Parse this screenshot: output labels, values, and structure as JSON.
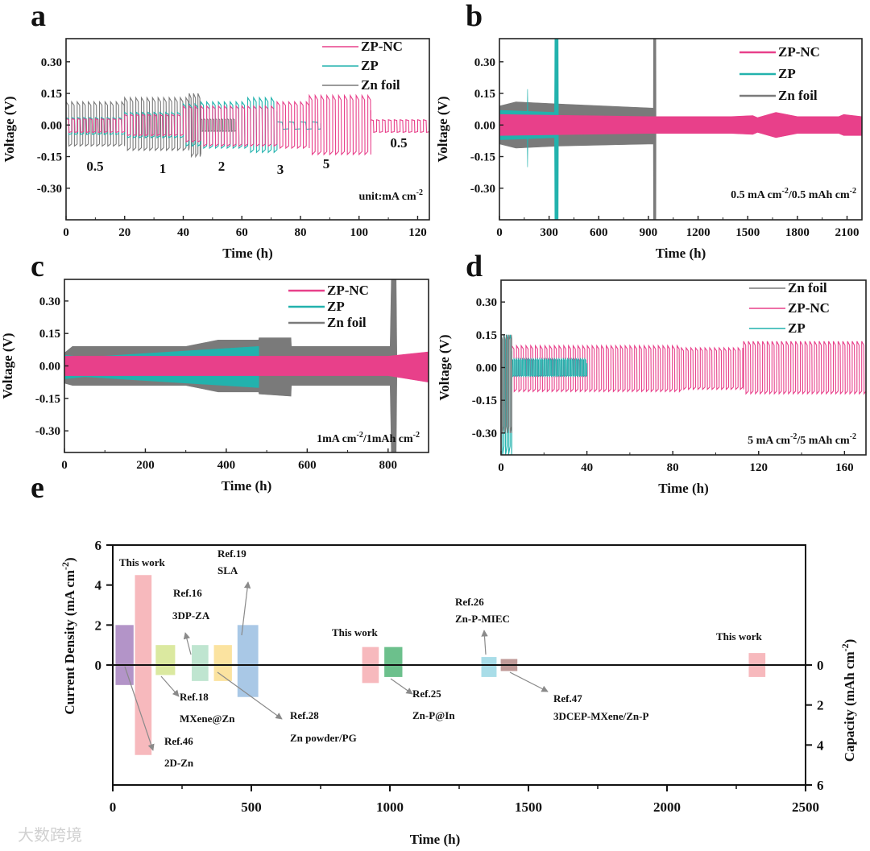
{
  "colors": {
    "zpnc": "#e8408a",
    "zp": "#22b2ad",
    "znfoil": "#7a7a7a"
  },
  "watermark": "大数跨境",
  "chart_data": [
    {
      "panel": "a",
      "type": "line",
      "style": "wave",
      "xlabel": "Time (h)",
      "ylabel": "Voltage (V)",
      "xlim": [
        0,
        124
      ],
      "ylim": [
        -0.45,
        0.41
      ],
      "xticks": [
        0,
        20,
        40,
        60,
        80,
        100,
        120
      ],
      "yticks": [
        -0.3,
        -0.15,
        0.0,
        0.15,
        0.3
      ],
      "ytick_labels": [
        "-0.30",
        "-0.15",
        "0.00",
        "0.15",
        "0.30"
      ],
      "legend": [
        "ZP-NC",
        "ZP",
        "Zn foil"
      ],
      "annotations": [
        "0.5",
        "1",
        "2",
        "3",
        "5",
        "0.5"
      ],
      "condition": [
        {
          "t": "unit:mA cm"
        },
        {
          "t": "-2",
          "sup": true
        }
      ],
      "series": [
        {
          "name": "Zn foil",
          "color": "znfoil",
          "segments": [
            {
              "t": [
                0,
                20
              ],
              "hi": 0.11,
              "lo": -0.1,
              "period": 1.9
            },
            {
              "t": [
                20,
                42
              ],
              "hi": 0.13,
              "lo": -0.12,
              "period": 1.9
            },
            {
              "t": [
                42,
                46
              ],
              "hi": 0.15,
              "lo": -0.15,
              "period": 1.5
            },
            {
              "t": [
                46,
                58
              ],
              "hi": 0.03,
              "lo": -0.03,
              "period": 1.0
            }
          ]
        },
        {
          "name": "ZP",
          "color": "zp",
          "segments": [
            {
              "t": [
                0,
                20
              ],
              "hi": 0.035,
              "lo": -0.045,
              "period": 2
            },
            {
              "t": [
                20,
                40
              ],
              "hi": 0.06,
              "lo": -0.06,
              "period": 2
            },
            {
              "t": [
                40,
                46
              ],
              "hi": 0.1,
              "lo": -0.1,
              "period": 2
            },
            {
              "t": [
                46,
                62
              ],
              "hi": 0.11,
              "lo": -0.11,
              "period": 2
            },
            {
              "t": [
                62,
                72
              ],
              "hi": 0.13,
              "lo": -0.13,
              "period": 2
            },
            {
              "t": [
                72,
                87
              ],
              "hi": 0.015,
              "lo": -0.02,
              "period": 4
            }
          ]
        },
        {
          "name": "ZP-NC",
          "color": "zpnc",
          "segments": [
            {
              "t": [
                0,
                20
              ],
              "hi": 0.03,
              "lo": -0.035,
              "period": 2
            },
            {
              "t": [
                20,
                40
              ],
              "hi": 0.05,
              "lo": -0.05,
              "period": 2
            },
            {
              "t": [
                40,
                46
              ],
              "hi": 0.09,
              "lo": -0.08,
              "period": 2
            },
            {
              "t": [
                46,
                72
              ],
              "hi": 0.09,
              "lo": -0.1,
              "period": 2
            },
            {
              "t": [
                72,
                83
              ],
              "hi": 0.11,
              "lo": -0.11,
              "period": 2
            },
            {
              "t": [
                83,
                104
              ],
              "hi": 0.14,
              "lo": -0.14,
              "period": 2
            },
            {
              "t": [
                104,
                124
              ],
              "hi": 0.025,
              "lo": -0.035,
              "period": 2
            }
          ]
        }
      ]
    },
    {
      "panel": "b",
      "type": "area",
      "style": "band",
      "xlabel": "Time (h)",
      "ylabel": "Voltage (V)",
      "xlim": [
        0,
        2190
      ],
      "ylim": [
        -0.45,
        0.41
      ],
      "xticks": [
        0,
        300,
        600,
        900,
        1200,
        1500,
        1800,
        2100
      ],
      "yticks": [
        -0.3,
        -0.15,
        0.0,
        0.15,
        0.3
      ],
      "ytick_labels": [
        "-0.30",
        "-0.15",
        "0.00",
        "0.15",
        "0.30"
      ],
      "legend": [
        "ZP-NC",
        "ZP",
        "Zn foil"
      ],
      "condition": [
        {
          "t": "0.5 mA cm"
        },
        {
          "t": "-2",
          "sup": true
        },
        {
          "t": "/0.5 mAh cm"
        },
        {
          "t": "-2",
          "sup": true
        }
      ],
      "series": [
        {
          "name": "Zn foil",
          "color": "znfoil",
          "envelope": [
            [
              0,
              0.09,
              -0.09
            ],
            [
              100,
              0.11,
              -0.11
            ],
            [
              350,
              0.1,
              -0.1
            ],
            [
              930,
              0.08,
              -0.09
            ],
            [
              931,
              0.41,
              -0.45
            ],
            [
              945,
              0.41,
              -0.45
            ],
            [
              946,
              0,
              0
            ]
          ]
        },
        {
          "name": "ZP",
          "color": "zp",
          "envelope": [
            [
              0,
              0.07,
              -0.07
            ],
            [
              168,
              0.065,
              -0.065
            ],
            [
              170,
              0.17,
              -0.2
            ],
            [
              172,
              0.065,
              -0.065
            ],
            [
              333,
              0.06,
              -0.06
            ],
            [
              335,
              0.41,
              -0.45
            ],
            [
              355,
              0.41,
              -0.45
            ],
            [
              356,
              0,
              0
            ]
          ]
        },
        {
          "name": "ZP-NC",
          "color": "zpnc",
          "envelope": [
            [
              0,
              0.05,
              -0.05
            ],
            [
              900,
              0.04,
              -0.04
            ],
            [
              1400,
              0.04,
              -0.04
            ],
            [
              1530,
              0.045,
              -0.045
            ],
            [
              1560,
              0.035,
              -0.035
            ],
            [
              1670,
              0.06,
              -0.06
            ],
            [
              1800,
              0.04,
              -0.04
            ],
            [
              2050,
              0.04,
              -0.04
            ],
            [
              2080,
              0.05,
              -0.05
            ],
            [
              2190,
              0.04,
              -0.05
            ]
          ]
        }
      ]
    },
    {
      "panel": "c",
      "type": "area",
      "style": "band",
      "xlabel": "Time (h)",
      "ylabel": "Voltage (V)",
      "xlim": [
        0,
        900
      ],
      "ylim": [
        -0.4,
        0.4
      ],
      "xticks": [
        0,
        200,
        400,
        600,
        800
      ],
      "yticks": [
        -0.3,
        -0.15,
        0.0,
        0.15,
        0.3
      ],
      "ytick_labels": [
        "-0.30",
        "-0.15",
        "0.00",
        "0.15",
        "0.30"
      ],
      "legend": [
        "ZP-NC",
        "ZP",
        "Zn foil"
      ],
      "condition": [
        {
          "t": "1mA cm"
        },
        {
          "t": "-2",
          "sup": true
        },
        {
          "t": "/1mAh cm"
        },
        {
          "t": "-2",
          "sup": true
        }
      ],
      "series": [
        {
          "name": "Zn foil",
          "color": "znfoil",
          "envelope": [
            [
              0,
              0.06,
              -0.08
            ],
            [
              20,
              0.09,
              -0.09
            ],
            [
              300,
              0.09,
              -0.09
            ],
            [
              380,
              0.12,
              -0.12
            ],
            [
              480,
              0.12,
              -0.12
            ],
            [
              481,
              0.13,
              -0.13
            ],
            [
              560,
              0.13,
              -0.14
            ],
            [
              561,
              0.09,
              -0.09
            ],
            [
              805,
              0.09,
              -0.09
            ],
            [
              808,
              0.4,
              -0.4
            ],
            [
              820,
              0.4,
              -0.4
            ],
            [
              822,
              0,
              0
            ]
          ]
        },
        {
          "name": "ZP",
          "color": "zp",
          "envelope": [
            [
              0,
              0.05,
              -0.06
            ],
            [
              50,
              0.04,
              -0.05
            ],
            [
              480,
              0.09,
              -0.1
            ],
            [
              481,
              0,
              0
            ]
          ]
        },
        {
          "name": "ZP-NC",
          "color": "zpnc",
          "envelope": [
            [
              0,
              0.045,
              -0.045
            ],
            [
              800,
              0.045,
              -0.045
            ],
            [
              900,
              0.065,
              -0.075
            ]
          ]
        }
      ]
    },
    {
      "panel": "d",
      "type": "line",
      "style": "wave",
      "xlabel": "Time (h)",
      "ylabel": "Voltage (V)",
      "xlim": [
        0,
        170
      ],
      "ylim": [
        -0.4,
        0.4
      ],
      "xticks": [
        0,
        40,
        80,
        120,
        160
      ],
      "yticks": [
        -0.3,
        -0.15,
        0.0,
        0.15,
        0.3
      ],
      "ytick_labels": [
        "-0.30",
        "-0.15",
        "0.00",
        "0.15",
        "0.30"
      ],
      "legend": [
        "Zn foil",
        "ZP-NC",
        "ZP"
      ],
      "condition": [
        {
          "t": "5 mA cm"
        },
        {
          "t": "-2",
          "sup": true
        },
        {
          "t": "/5 mAh cm"
        },
        {
          "t": "-2",
          "sup": true
        }
      ],
      "series": [
        {
          "name": "ZP-NC",
          "color": "zpnc",
          "segments": [
            {
              "t": [
                5,
                84
              ],
              "hi": 0.1,
              "lo": -0.11,
              "period": 2.2
            },
            {
              "t": [
                84,
                113
              ],
              "hi": 0.09,
              "lo": -0.1,
              "period": 2.2
            },
            {
              "t": [
                113,
                170
              ],
              "hi": 0.12,
              "lo": -0.12,
              "period": 2.2
            }
          ]
        },
        {
          "name": "ZP",
          "color": "zp",
          "segments": [
            {
              "t": [
                0,
                5
              ],
              "hi": 0.15,
              "lo": -0.4,
              "period": 1.4
            },
            {
              "t": [
                5,
                40
              ],
              "hi": 0.04,
              "lo": -0.04,
              "period": 1.0
            }
          ]
        },
        {
          "name": "Zn foil",
          "color": "znfoil",
          "segments": [
            {
              "t": [
                0,
                5
              ],
              "hi": 0.15,
              "lo": -0.3,
              "period": 1.2
            }
          ]
        }
      ]
    },
    {
      "panel": "e",
      "type": "bar",
      "xlabel": "Time (h)",
      "ylabel_left": "Current Density (mA cm",
      "ylabel_left_sup": "-2",
      "ylabel_left_end": ")",
      "ylabel_right": "Capacity (mAh cm",
      "ylabel_right_sup": "-2",
      "ylabel_right_end": ")",
      "xlim": [
        0,
        2500
      ],
      "ylim_left": [
        -6,
        6
      ],
      "ylim_right": [
        6,
        -6
      ],
      "xticks": [
        0,
        500,
        1000,
        1500,
        2000,
        2500
      ],
      "yticks_left": [
        0,
        2,
        4,
        6
      ],
      "yticks_right": [
        0,
        2,
        4,
        6
      ],
      "bars": [
        {
          "t": [
            10,
            75
          ],
          "current": 2.0,
          "capacity": 1.0,
          "color": "#b394c8",
          "label": [
            "Ref.46",
            "2D-Zn"
          ]
        },
        {
          "t": [
            80,
            140
          ],
          "current": 4.5,
          "capacity": 4.5,
          "color": "#f7b9bd",
          "label": [
            "This work"
          ]
        },
        {
          "t": [
            155,
            225
          ],
          "current": 1.0,
          "capacity": 0.5,
          "color": "#dbe9a0",
          "label": [
            "Ref.18",
            "MXene@Zn"
          ]
        },
        {
          "t": [
            285,
            345
          ],
          "current": 1.0,
          "capacity": 0.8,
          "color": "#bfe5d0",
          "label": [
            "Ref.16",
            "3DP-ZA"
          ]
        },
        {
          "t": [
            365,
            430
          ],
          "current": 1.0,
          "capacity": 0.8,
          "color": "#fbe3a0",
          "label": [
            "Ref.28",
            "Zn powder/PG"
          ]
        },
        {
          "t": [
            450,
            525
          ],
          "current": 2.0,
          "capacity": 1.6,
          "color": "#a9c8e6",
          "label": [
            "Ref.19",
            "SLA"
          ]
        },
        {
          "t": [
            900,
            960
          ],
          "current": 0.9,
          "capacity": 0.9,
          "color": "#f7b9bd",
          "label": [
            "This work"
          ]
        },
        {
          "t": [
            980,
            1045
          ],
          "current": 0.9,
          "capacity": 0.6,
          "color": "#6cc08c",
          "label": [
            "Ref.25",
            "Zn-P@In"
          ]
        },
        {
          "t": [
            1330,
            1385
          ],
          "current": 0.4,
          "capacity": 0.6,
          "color": "#a9dde8",
          "label": [
            "Ref.26",
            "Zn-P-MIEC"
          ]
        },
        {
          "t": [
            1400,
            1460
          ],
          "current": 0.3,
          "capacity": 0.3,
          "color": "#c09a98",
          "label": [
            "Ref.47",
            "3DCEP-MXene/Zn-P"
          ]
        },
        {
          "t": [
            2295,
            2355
          ],
          "current": 0.6,
          "capacity": 0.6,
          "color": "#f7b9bd",
          "label": [
            "This work"
          ]
        }
      ]
    }
  ]
}
